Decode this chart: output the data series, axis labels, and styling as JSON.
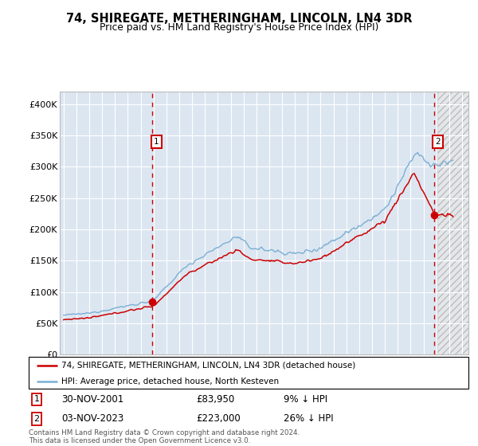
{
  "title": "74, SHIREGATE, METHERINGHAM, LINCOLN, LN4 3DR",
  "subtitle": "Price paid vs. HM Land Registry's House Price Index (HPI)",
  "legend_line1": "74, SHIREGATE, METHERINGHAM, LINCOLN, LN4 3DR (detached house)",
  "legend_line2": "HPI: Average price, detached house, North Kesteven",
  "annotation1_date": "30-NOV-2001",
  "annotation1_price": "£83,950",
  "annotation1_hpi": "9% ↓ HPI",
  "annotation2_date": "03-NOV-2023",
  "annotation2_price": "£223,000",
  "annotation2_hpi": "26% ↓ HPI",
  "footer": "Contains HM Land Registry data © Crown copyright and database right 2024.\nThis data is licensed under the Open Government Licence v3.0.",
  "red_color": "#cc0000",
  "blue_color": "#7bafd4",
  "background_plot": "#dce6f1",
  "background_fig": "#ffffff",
  "grid_color": "#ffffff",
  "ylim": [
    0,
    420000
  ],
  "xlim_start": 1994.7,
  "xlim_end": 2026.5,
  "marker1_x": 2001.92,
  "marker1_y": 83950,
  "marker2_x": 2023.84,
  "marker2_y": 223000,
  "vline1_x": 2001.92,
  "vline2_x": 2023.84
}
